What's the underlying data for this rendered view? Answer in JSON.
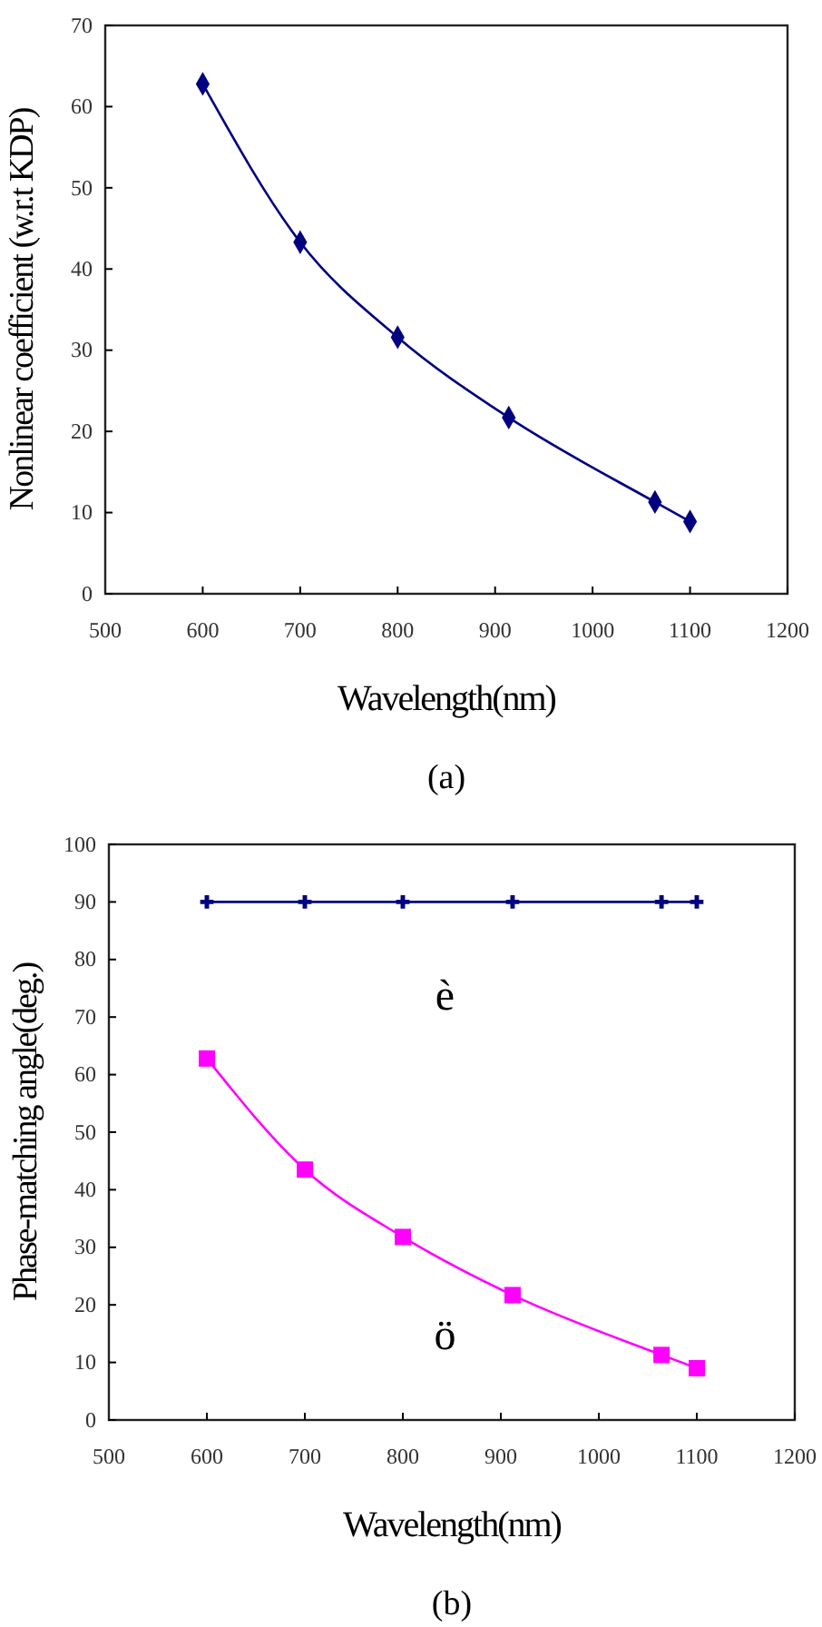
{
  "chart_data": [
    {
      "type": "line",
      "title": "(a)",
      "xlabel": "Wavelength(nm)",
      "ylabel": "Nonlinear coefficient (w.r.t KDP)",
      "xlim": [
        500,
        1200
      ],
      "xticks": [
        500,
        600,
        700,
        800,
        900,
        1000,
        1100,
        1200
      ],
      "ylim": [
        0,
        70
      ],
      "yticks": [
        0,
        10,
        20,
        30,
        40,
        50,
        60,
        70
      ],
      "grid": false,
      "marker": "diamond",
      "series": [
        {
          "color": "#000080",
          "x": [
            600,
            700,
            800,
            914,
            1064,
            1100
          ],
          "values": [
            62.8,
            43.3,
            31.6,
            21.7,
            11.3,
            8.9
          ]
        }
      ]
    },
    {
      "type": "line",
      "title": "(b)",
      "xlabel": "Wavelength(nm)",
      "ylabel": "Phase-matching angle(deg.)",
      "xlim": [
        500,
        1200
      ],
      "xticks": [
        500,
        600,
        700,
        800,
        900,
        1000,
        1100,
        1200
      ],
      "ylim": [
        0,
        100
      ],
      "yticks": [
        0,
        10,
        20,
        30,
        40,
        50,
        60,
        70,
        80,
        90,
        100
      ],
      "grid": false,
      "annotations": [
        "è",
        "ö"
      ],
      "series": [
        {
          "color": "#000080",
          "marker": "cross",
          "x": [
            600,
            700,
            800,
            912,
            1064,
            1100
          ],
          "values": [
            90,
            90,
            90,
            90,
            90,
            90
          ]
        },
        {
          "color": "#ff00ff",
          "marker": "square",
          "x": [
            600,
            700,
            800,
            912,
            1064,
            1100
          ],
          "values": [
            62.8,
            43.5,
            31.8,
            21.7,
            11.3,
            9.0
          ]
        }
      ]
    }
  ]
}
